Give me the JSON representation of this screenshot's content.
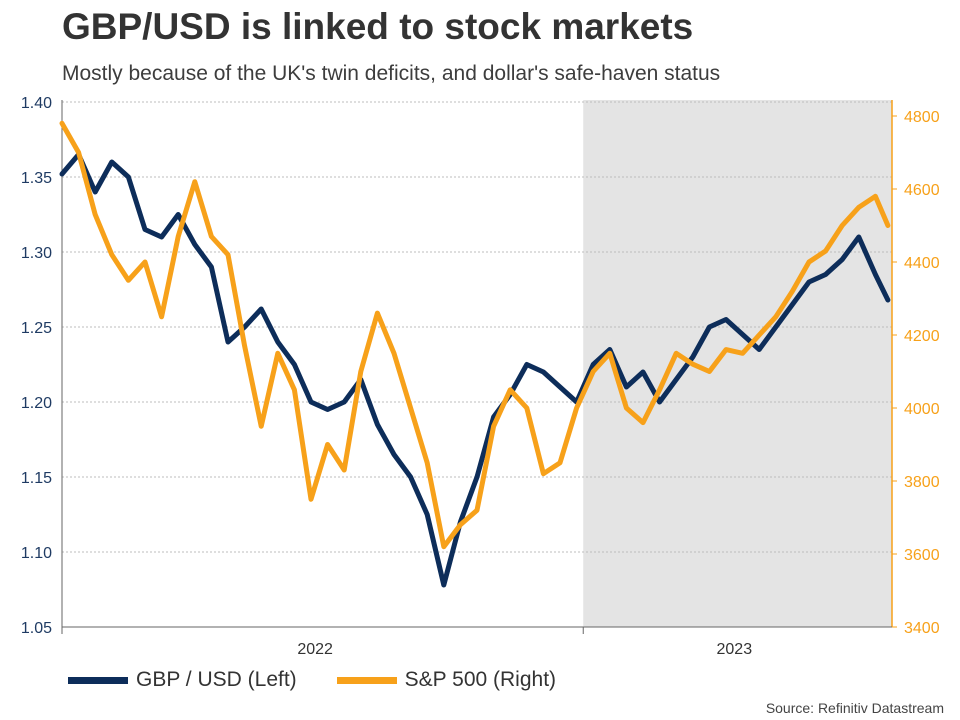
{
  "header": {
    "title": "GBP/USD is linked to stock markets",
    "subtitle": "Mostly because of the UK's twin deficits, and dollar's safe-haven status"
  },
  "source": "Source: Refinitiv Datastream",
  "legend": [
    {
      "label": "GBP / USD (Left)",
      "color": "#0d2d5a"
    },
    {
      "label": "S&P 500 (Right)",
      "color": "#f7a11a"
    }
  ],
  "chart_data": {
    "type": "line",
    "title": "GBP/USD is linked to stock markets",
    "subtitle": "Mostly because of the UK's twin deficits, and dollar's safe-haven status",
    "x_tick_labels": [
      "2022",
      "2023"
    ],
    "left_axis": {
      "ylim": [
        1.05,
        1.4
      ],
      "ticks": [
        "1.05",
        "1.10",
        "1.15",
        "1.20",
        "1.25",
        "1.30",
        "1.35",
        "1.40"
      ]
    },
    "right_axis": {
      "ylim": [
        3400,
        4850
      ],
      "ticks": [
        "3400",
        "3600",
        "3800",
        "4000",
        "4200",
        "4400",
        "4600",
        "4800"
      ]
    },
    "shaded_region": {
      "from": 0.628,
      "to": 1.0,
      "color": "#e4e4e4"
    },
    "grid": true,
    "legend_position": "bottom",
    "series": [
      {
        "name": "GBP / USD (Left)",
        "axis": "left",
        "color": "#0d2d5a",
        "x": [
          0.0,
          0.02,
          0.04,
          0.06,
          0.08,
          0.1,
          0.12,
          0.14,
          0.16,
          0.18,
          0.2,
          0.22,
          0.24,
          0.26,
          0.28,
          0.3,
          0.32,
          0.34,
          0.36,
          0.38,
          0.4,
          0.42,
          0.44,
          0.46,
          0.48,
          0.5,
          0.52,
          0.54,
          0.56,
          0.58,
          0.6,
          0.62,
          0.64,
          0.66,
          0.68,
          0.7,
          0.72,
          0.74,
          0.76,
          0.78,
          0.8,
          0.82,
          0.84,
          0.86,
          0.88,
          0.9,
          0.92,
          0.94,
          0.96,
          0.98,
          0.995
        ],
        "values": [
          1.352,
          1.365,
          1.34,
          1.36,
          1.35,
          1.315,
          1.31,
          1.325,
          1.305,
          1.29,
          1.24,
          1.25,
          1.262,
          1.24,
          1.225,
          1.2,
          1.195,
          1.2,
          1.215,
          1.185,
          1.165,
          1.15,
          1.125,
          1.078,
          1.12,
          1.15,
          1.19,
          1.205,
          1.225,
          1.22,
          1.21,
          1.2,
          1.225,
          1.235,
          1.21,
          1.22,
          1.2,
          1.215,
          1.23,
          1.25,
          1.255,
          1.245,
          1.235,
          1.25,
          1.265,
          1.28,
          1.285,
          1.295,
          1.31,
          1.285,
          1.268
        ]
      },
      {
        "name": "S&P 500 (Right)",
        "axis": "right",
        "color": "#f7a11a",
        "x": [
          0.0,
          0.02,
          0.04,
          0.06,
          0.08,
          0.1,
          0.12,
          0.14,
          0.16,
          0.18,
          0.2,
          0.22,
          0.24,
          0.26,
          0.28,
          0.3,
          0.32,
          0.34,
          0.36,
          0.38,
          0.4,
          0.42,
          0.44,
          0.46,
          0.48,
          0.5,
          0.52,
          0.54,
          0.56,
          0.58,
          0.6,
          0.62,
          0.64,
          0.66,
          0.68,
          0.7,
          0.72,
          0.74,
          0.76,
          0.78,
          0.8,
          0.82,
          0.84,
          0.86,
          0.88,
          0.9,
          0.92,
          0.94,
          0.96,
          0.98,
          0.995
        ],
        "values": [
          4780,
          4700,
          4530,
          4420,
          4350,
          4400,
          4250,
          4470,
          4620,
          4470,
          4420,
          4170,
          3950,
          4150,
          4050,
          3750,
          3900,
          3830,
          4100,
          4260,
          4150,
          4000,
          3850,
          3620,
          3680,
          3720,
          3950,
          4050,
          4000,
          3820,
          3850,
          4000,
          4100,
          4150,
          4000,
          3960,
          4050,
          4150,
          4120,
          4100,
          4160,
          4150,
          4200,
          4250,
          4320,
          4400,
          4430,
          4500,
          4550,
          4580,
          4500
        ]
      }
    ]
  }
}
